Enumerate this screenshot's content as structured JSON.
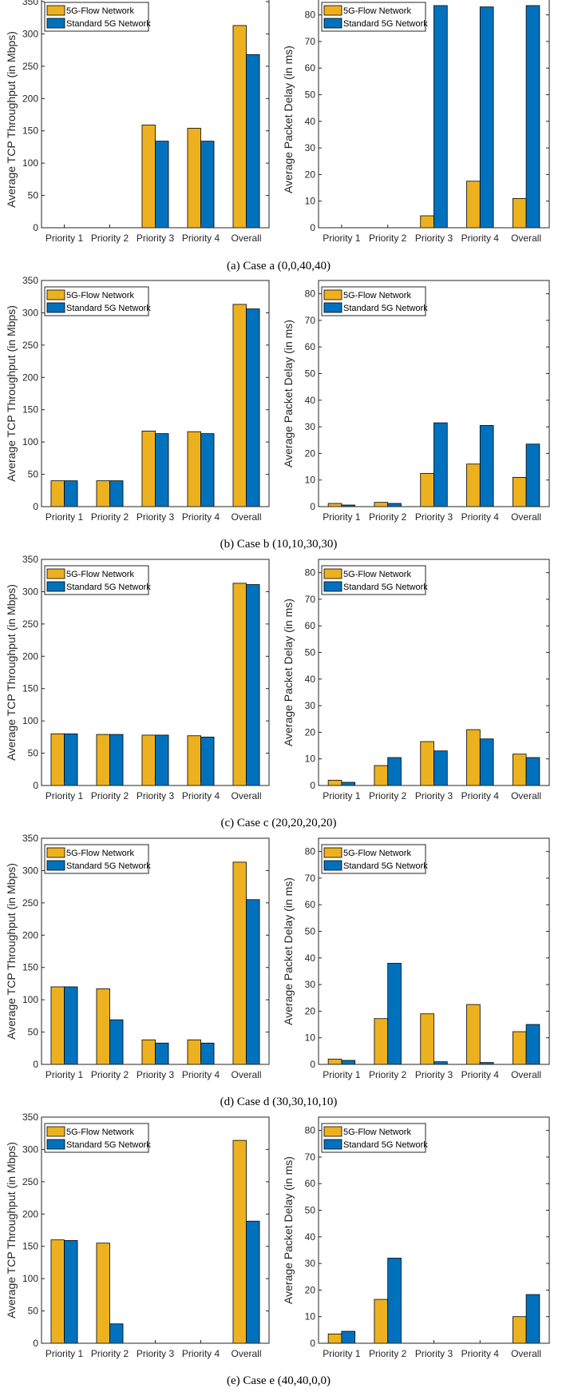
{
  "colors": {
    "series_1": "#EDB120",
    "series_2": "#0072BD"
  },
  "captions": [
    "(a) Case a (0,0,40,40)",
    "(b) Case b (10,10,30,30)",
    "(c) Case c (20,20,20,20)",
    "(d) Case d (30,30,10,10)",
    "(e) Case e (40,40,0,0)"
  ],
  "chart_data": [
    {
      "type": "bar",
      "case": "a",
      "panel": "throughput",
      "ylabel": "Average TCP Throughput (in Mbps)",
      "ylim": [
        0,
        350
      ],
      "yticks": [
        0,
        50,
        100,
        150,
        200,
        250,
        300,
        350
      ],
      "categories": [
        "Priority 1",
        "Priority 2",
        "Priority 3",
        "Priority 4",
        "Overall"
      ],
      "legend_position": "top-left",
      "series": [
        {
          "name": "5G-Flow Network",
          "values": [
            0,
            0,
            159,
            154,
            313
          ]
        },
        {
          "name": "Standard 5G Network",
          "values": [
            0,
            0,
            134,
            134,
            268
          ]
        }
      ]
    },
    {
      "type": "bar",
      "case": "a",
      "panel": "delay",
      "ylabel": "Average Packet Delay (in ms)",
      "ylim": [
        0,
        85
      ],
      "yticks": [
        0,
        10,
        20,
        30,
        40,
        50,
        60,
        70,
        80
      ],
      "categories": [
        "Priority 1",
        "Priority 2",
        "Priority 3",
        "Priority 4",
        "Overall"
      ],
      "legend_position": "top-left",
      "series": [
        {
          "name": "5G-Flow Network",
          "values": [
            0,
            0,
            4.5,
            17.5,
            11
          ]
        },
        {
          "name": "Standard 5G Network",
          "values": [
            0,
            0,
            83.5,
            83,
            83.5
          ]
        }
      ]
    },
    {
      "type": "bar",
      "case": "b",
      "panel": "throughput",
      "ylabel": "Average TCP Throughput (in Mbps)",
      "ylim": [
        0,
        350
      ],
      "yticks": [
        0,
        50,
        100,
        150,
        200,
        250,
        300,
        350
      ],
      "categories": [
        "Priority 1",
        "Priority 2",
        "Priority 3",
        "Priority 4",
        "Overall"
      ],
      "legend_position": "top-left",
      "series": [
        {
          "name": "5G-Flow Network",
          "values": [
            40,
            40,
            117,
            116,
            313
          ]
        },
        {
          "name": "Standard 5G Network",
          "values": [
            40,
            40,
            113,
            113,
            306
          ]
        }
      ]
    },
    {
      "type": "bar",
      "case": "b",
      "panel": "delay",
      "ylabel": "Average Packet Delay (in ms)",
      "ylim": [
        0,
        85
      ],
      "yticks": [
        0,
        10,
        20,
        30,
        40,
        50,
        60,
        70,
        80
      ],
      "categories": [
        "Priority 1",
        "Priority 2",
        "Priority 3",
        "Priority 4",
        "Overall"
      ],
      "legend_position": "top-left",
      "series": [
        {
          "name": "5G-Flow Network",
          "values": [
            1.2,
            1.6,
            12.5,
            16,
            11
          ]
        },
        {
          "name": "Standard 5G Network",
          "values": [
            0.6,
            1.2,
            31.5,
            30.5,
            23.5
          ]
        }
      ]
    },
    {
      "type": "bar",
      "case": "c",
      "panel": "throughput",
      "ylabel": "Average TCP Throughput (in Mbps)",
      "ylim": [
        0,
        350
      ],
      "yticks": [
        0,
        50,
        100,
        150,
        200,
        250,
        300,
        350
      ],
      "categories": [
        "Priority 1",
        "Priority 2",
        "Priority 3",
        "Priority 4",
        "Overall"
      ],
      "legend_position": "top-left",
      "series": [
        {
          "name": "5G-Flow Network",
          "values": [
            80,
            79,
            78,
            77,
            313
          ]
        },
        {
          "name": "Standard 5G Network",
          "values": [
            80,
            79,
            78,
            75,
            311
          ]
        }
      ]
    },
    {
      "type": "bar",
      "case": "c",
      "panel": "delay",
      "ylabel": "Average Packet Delay (in ms)",
      "ylim": [
        0,
        85
      ],
      "yticks": [
        0,
        10,
        20,
        30,
        40,
        50,
        60,
        70,
        80
      ],
      "categories": [
        "Priority 1",
        "Priority 2",
        "Priority 3",
        "Priority 4",
        "Overall"
      ],
      "legend_position": "top-left",
      "series": [
        {
          "name": "5G-Flow Network",
          "values": [
            2,
            7.5,
            16.5,
            21,
            11.8
          ]
        },
        {
          "name": "Standard 5G Network",
          "values": [
            1.2,
            10.5,
            13,
            17.5,
            10.5
          ]
        }
      ]
    },
    {
      "type": "bar",
      "case": "d",
      "panel": "throughput",
      "ylabel": "Average TCP Throughput (in Mbps)",
      "ylim": [
        0,
        350
      ],
      "yticks": [
        0,
        50,
        100,
        150,
        200,
        250,
        300,
        350
      ],
      "categories": [
        "Priority 1",
        "Priority 2",
        "Priority 3",
        "Priority 4",
        "Overall"
      ],
      "legend_position": "top-left",
      "series": [
        {
          "name": "5G-Flow Network",
          "values": [
            120,
            117,
            38,
            38,
            313
          ]
        },
        {
          "name": "Standard 5G Network",
          "values": [
            120,
            69,
            33,
            33,
            255
          ]
        }
      ]
    },
    {
      "type": "bar",
      "case": "d",
      "panel": "delay",
      "ylabel": "Average Packet Delay (in ms)",
      "ylim": [
        0,
        85
      ],
      "yticks": [
        0,
        10,
        20,
        30,
        40,
        50,
        60,
        70,
        80
      ],
      "categories": [
        "Priority 1",
        "Priority 2",
        "Priority 3",
        "Priority 4",
        "Overall"
      ],
      "legend_position": "top-left",
      "series": [
        {
          "name": "5G-Flow Network",
          "values": [
            2,
            17.2,
            19,
            22.5,
            12.3
          ]
        },
        {
          "name": "Standard 5G Network",
          "values": [
            1.5,
            38,
            1,
            0.7,
            15
          ]
        }
      ]
    },
    {
      "type": "bar",
      "case": "e",
      "panel": "throughput",
      "ylabel": "Average TCP Throughput (in Mbps)",
      "ylim": [
        0,
        350
      ],
      "yticks": [
        0,
        50,
        100,
        150,
        200,
        250,
        300,
        350
      ],
      "categories": [
        "Priority 1",
        "Priority 2",
        "Priority 3",
        "Priority 4",
        "Overall"
      ],
      "legend_position": "top-left",
      "series": [
        {
          "name": "5G-Flow Network",
          "values": [
            160,
            155,
            0,
            0,
            314
          ]
        },
        {
          "name": "Standard 5G Network",
          "values": [
            159,
            30,
            0,
            0,
            189
          ]
        }
      ]
    },
    {
      "type": "bar",
      "case": "e",
      "panel": "delay",
      "ylabel": "Average Packet Delay (in ms)",
      "ylim": [
        0,
        85
      ],
      "yticks": [
        0,
        10,
        20,
        30,
        40,
        50,
        60,
        70,
        80
      ],
      "categories": [
        "Priority 1",
        "Priority 2",
        "Priority 3",
        "Priority 4",
        "Overall"
      ],
      "legend_position": "top-left",
      "series": [
        {
          "name": "5G-Flow Network",
          "values": [
            3.5,
            16.5,
            0,
            0,
            10
          ]
        },
        {
          "name": "Standard 5G Network",
          "values": [
            4.5,
            32,
            0,
            0,
            18.3
          ]
        }
      ]
    }
  ]
}
